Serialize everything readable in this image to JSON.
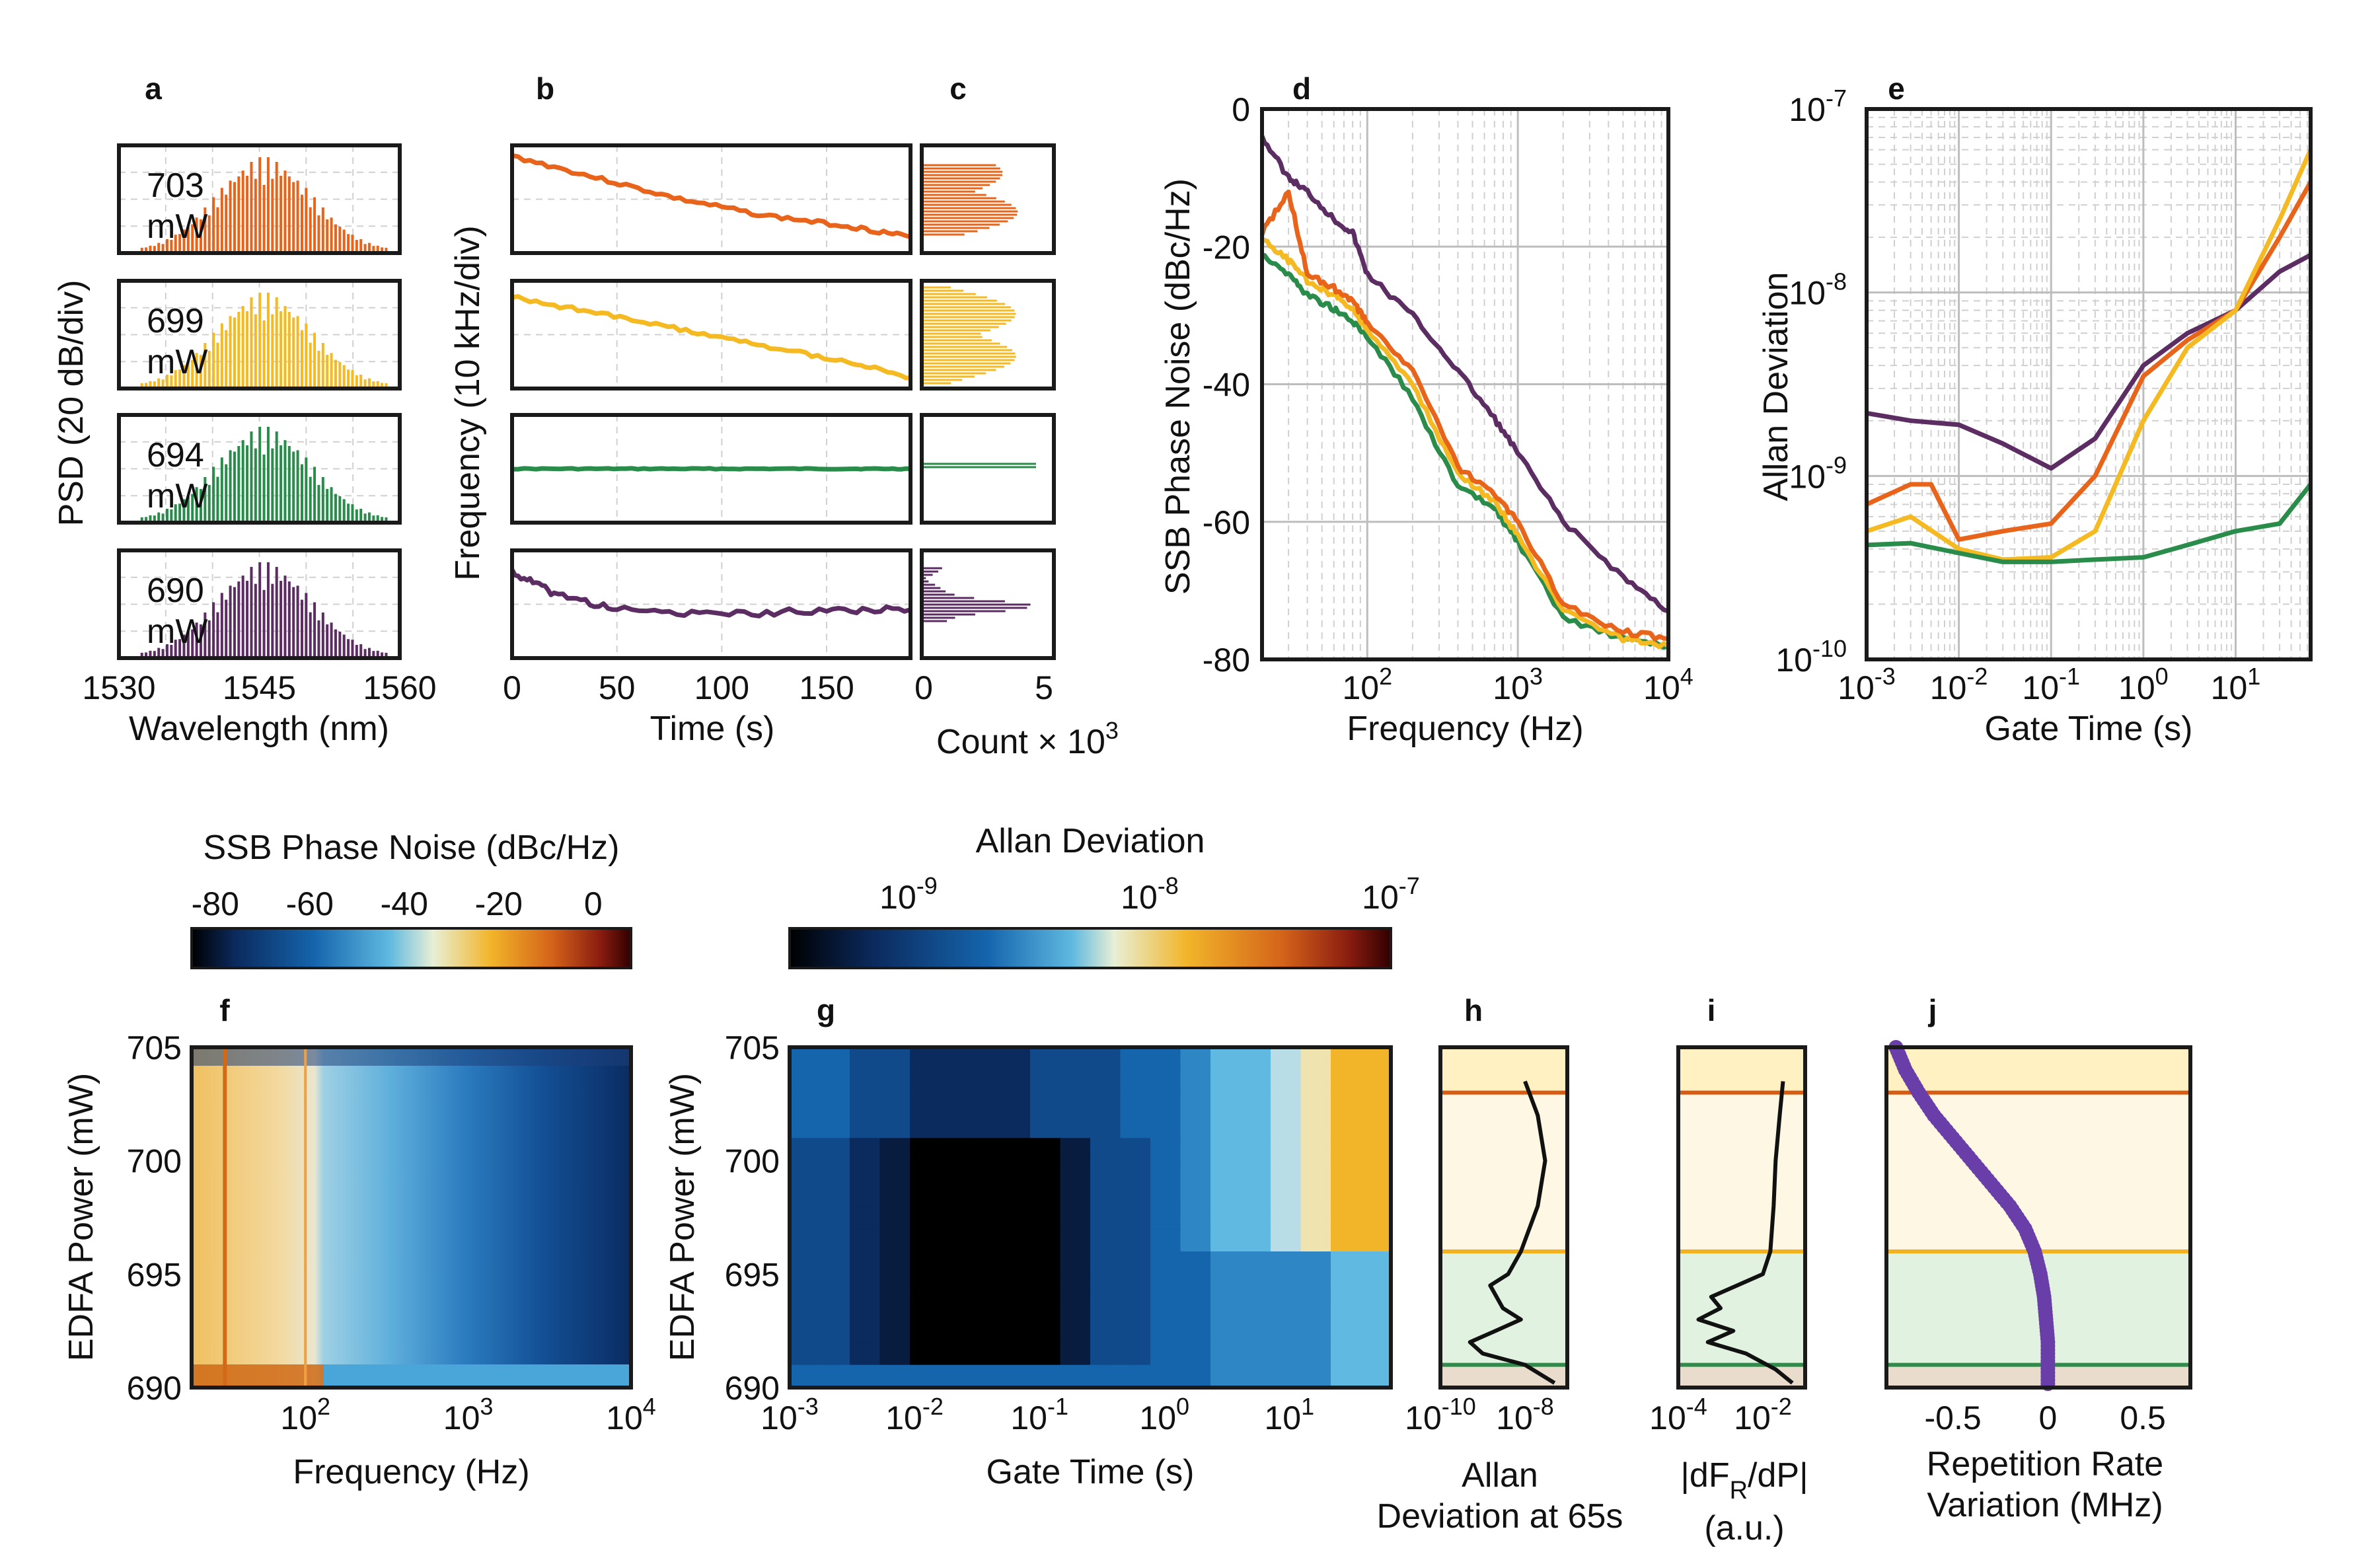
{
  "colors": {
    "p703": "#e8641b",
    "p699": "#f5b921",
    "p694": "#2a8c4a",
    "p690": "#5c2d62",
    "bandRed": "#d95a12",
    "bandYellow": "#f2b21e",
    "bandGreen": "#2e8b4a",
    "scatter": "#6a3ea8"
  },
  "panel_labels": [
    "a",
    "b",
    "c",
    "d",
    "e",
    "f",
    "g",
    "h",
    "i",
    "j"
  ],
  "chart_data": [
    {
      "id": "a",
      "type": "bar",
      "title": "",
      "xlabel": "Wavelength (nm)",
      "ylabel": "PSD (20 dB/div)",
      "xlim": [
        1530,
        1560
      ],
      "xticks": [
        "1530",
        "1545",
        "1560"
      ],
      "series": [
        {
          "name": "703",
          "unit": "mW",
          "center": 1545.5,
          "comb_spacing_nm": 0.5,
          "width_nm": 6
        },
        {
          "name": "699",
          "unit": "mW",
          "center": 1545.5,
          "comb_spacing_nm": 0.5,
          "width_nm": 6
        },
        {
          "name": "694",
          "unit": "mW",
          "center": 1545.5,
          "comb_spacing_nm": 0.5,
          "width_nm": 6
        },
        {
          "name": "690",
          "unit": "mW",
          "center": 1545.5,
          "comb_spacing_nm": 0.5,
          "width_nm": 6
        }
      ]
    },
    {
      "id": "b",
      "type": "line",
      "xlabel": "Time (s)",
      "ylabel": "Frequency (10 kHz/div)",
      "xlim": [
        0,
        190
      ],
      "xticks": [
        "0",
        "50",
        "100",
        "150"
      ],
      "series": [
        {
          "name": "703 mW",
          "x": [
            0,
            40,
            80,
            120,
            160,
            190
          ],
          "y": [
            0.9,
            0.7,
            0.5,
            0.35,
            0.25,
            0.15
          ]
        },
        {
          "name": "699 mW",
          "x": [
            0,
            40,
            80,
            120,
            160,
            190
          ],
          "y": [
            0.85,
            0.7,
            0.55,
            0.4,
            0.25,
            0.1
          ]
        },
        {
          "name": "694 mW",
          "x": [
            0,
            40,
            80,
            120,
            160,
            190
          ],
          "y": [
            0.5,
            0.5,
            0.5,
            0.5,
            0.5,
            0.5
          ]
        },
        {
          "name": "690 mW",
          "x": [
            0,
            20,
            50,
            100,
            150,
            190
          ],
          "y": [
            0.8,
            0.6,
            0.45,
            0.4,
            0.45,
            0.45
          ]
        }
      ]
    },
    {
      "id": "c",
      "type": "bar",
      "xlabel": "Count × 10",
      "xlabel_exp": "3",
      "xlim": [
        0,
        5
      ],
      "xticks": [
        "0",
        "5"
      ]
    },
    {
      "id": "d",
      "type": "line",
      "xlabel": "Frequency (Hz)",
      "ylabel": "SSB Phase Noise (dBc/Hz)",
      "xscale": "log",
      "xlim": [
        20,
        10000
      ],
      "ylim": [
        -80,
        0
      ],
      "yticks": [
        "0",
        "-20",
        "-40",
        "-60",
        "-80"
      ],
      "xticks": [
        {
          "base": "10",
          "exp": "2",
          "v": 100
        },
        {
          "base": "10",
          "exp": "3",
          "v": 1000
        },
        {
          "base": "10",
          "exp": "4",
          "v": 10000
        }
      ],
      "series": [
        {
          "name": "690 mW",
          "x": [
            20,
            30,
            40,
            60,
            80,
            100,
            200,
            400,
            700,
            1000,
            2000,
            5000,
            10000
          ],
          "y": [
            -4,
            -10,
            -12,
            -16,
            -18,
            -24,
            -30,
            -38,
            -45,
            -50,
            -60,
            -68,
            -73
          ]
        },
        {
          "name": "703 mW",
          "x": [
            20,
            30,
            40,
            60,
            80,
            100,
            200,
            400,
            700,
            1000,
            2000,
            5000,
            10000
          ],
          "y": [
            -18,
            -12,
            -24,
            -26,
            -28,
            -31,
            -38,
            -52,
            -56,
            -60,
            -72,
            -76,
            -77
          ]
        },
        {
          "name": "699 mW",
          "x": [
            20,
            30,
            40,
            60,
            80,
            100,
            200,
            400,
            700,
            1000,
            2000,
            5000,
            10000
          ],
          "y": [
            -19,
            -22,
            -25,
            -27,
            -29,
            -32,
            -40,
            -53,
            -57,
            -62,
            -73,
            -77,
            -78
          ]
        },
        {
          "name": "694 mW",
          "x": [
            20,
            30,
            40,
            60,
            80,
            100,
            200,
            400,
            700,
            1000,
            2000,
            5000,
            10000
          ],
          "y": [
            -21,
            -24,
            -27,
            -29,
            -31,
            -33,
            -42,
            -55,
            -58,
            -63,
            -74,
            -77,
            -78
          ]
        }
      ]
    },
    {
      "id": "e",
      "type": "line",
      "xlabel": "Gate Time (s)",
      "ylabel": "Allan Deviation",
      "xscale": "log",
      "yscale": "log",
      "xlim": [
        0.001,
        65
      ],
      "ylim": [
        1e-10,
        1e-07
      ],
      "yticks": [
        {
          "base": "10",
          "exp": "-7",
          "v": 1e-07
        },
        {
          "base": "10",
          "exp": "-8",
          "v": 1e-08
        },
        {
          "base": "10",
          "exp": "-9",
          "v": 1e-09
        },
        {
          "base": "10",
          "exp": "-10",
          "v": 1e-10
        }
      ],
      "xticks": [
        {
          "base": "10",
          "exp": "-3",
          "v": 0.001
        },
        {
          "base": "10",
          "exp": "-2",
          "v": 0.01
        },
        {
          "base": "10",
          "exp": "-1",
          "v": 0.1
        },
        {
          "base": "10",
          "exp": "0",
          "v": 1
        },
        {
          "base": "10",
          "exp": "1",
          "v": 10
        }
      ],
      "series": [
        {
          "name": "690 mW",
          "x": [
            0.001,
            0.003,
            0.01,
            0.03,
            0.1,
            0.3,
            1,
            3,
            10,
            30,
            65
          ],
          "y": [
            2.2e-09,
            2e-09,
            1.9e-09,
            1.5e-09,
            1.1e-09,
            1.6e-09,
            4e-09,
            6e-09,
            8e-09,
            1.3e-08,
            1.6e-08
          ]
        },
        {
          "name": "703 mW",
          "x": [
            0.001,
            0.003,
            0.005,
            0.01,
            0.03,
            0.1,
            0.3,
            1,
            3,
            10,
            30,
            65
          ],
          "y": [
            7e-10,
            9e-10,
            9e-10,
            4.5e-10,
            5e-10,
            5.5e-10,
            1e-09,
            3.5e-09,
            5.5e-09,
            8e-09,
            2e-08,
            4e-08
          ]
        },
        {
          "name": "699 mW",
          "x": [
            0.001,
            0.003,
            0.01,
            0.03,
            0.1,
            0.3,
            1,
            3,
            10,
            30,
            65
          ],
          "y": [
            5e-10,
            6e-10,
            4e-10,
            3.5e-10,
            3.6e-10,
            5e-10,
            2e-09,
            5e-09,
            8e-09,
            2.5e-08,
            6e-08
          ]
        },
        {
          "name": "694 mW",
          "x": [
            0.001,
            0.003,
            0.01,
            0.03,
            0.1,
            0.3,
            1,
            3,
            10,
            30,
            65
          ],
          "y": [
            4.2e-10,
            4.3e-10,
            3.8e-10,
            3.4e-10,
            3.4e-10,
            3.5e-10,
            3.6e-10,
            4.2e-10,
            5e-10,
            5.5e-10,
            9e-10
          ]
        }
      ]
    },
    {
      "id": "f",
      "type": "heatmap",
      "title": "SSB Phase Noise (dBc/Hz)",
      "colorbar_ticks": [
        "-80",
        "-60",
        "-40",
        "-20",
        "0"
      ],
      "colorbar_range": [
        -85,
        8
      ],
      "xlabel": "Frequency (Hz)",
      "ylabel": "EDFA Power (mW)",
      "xscale": "log",
      "xlim": [
        20,
        10000
      ],
      "ylim": [
        690,
        705
      ],
      "xticks": [
        {
          "base": "10",
          "exp": "2",
          "v": 100
        },
        {
          "base": "10",
          "exp": "3",
          "v": 1000
        },
        {
          "base": "10",
          "exp": "4",
          "v": 10000
        }
      ],
      "yticks": [
        "705",
        "700",
        "695",
        "690"
      ]
    },
    {
      "id": "g",
      "type": "heatmap",
      "title": "Allan Deviation",
      "colorbar_ticks": [
        {
          "base": "10",
          "exp": "-9"
        },
        {
          "base": "10",
          "exp": "-8"
        },
        {
          "base": "10",
          "exp": "-7"
        }
      ],
      "xlabel": "Gate Time (s)",
      "ylabel": "EDFA Power (mW)",
      "xscale": "log",
      "xlim": [
        0.001,
        65
      ],
      "ylim": [
        690,
        705
      ],
      "xticks": [
        {
          "base": "10",
          "exp": "-3",
          "v": 0.001
        },
        {
          "base": "10",
          "exp": "-2",
          "v": 0.01
        },
        {
          "base": "10",
          "exp": "-1",
          "v": 0.1
        },
        {
          "base": "10",
          "exp": "0",
          "v": 1
        },
        {
          "base": "10",
          "exp": "1",
          "v": 10
        }
      ],
      "yticks": [
        "705",
        "700",
        "695",
        "690"
      ]
    },
    {
      "id": "h",
      "type": "line",
      "xlabel_lines": [
        "Allan",
        "Deviation at 65s"
      ],
      "xscale": "log",
      "xlim": [
        1e-10,
        1e-07
      ],
      "ylim": [
        690,
        705
      ],
      "xticks": [
        {
          "base": "10",
          "exp": "-10",
          "v": 1e-10
        },
        {
          "base": "10",
          "exp": "-8",
          "v": 1e-08
        }
      ],
      "bands_mW": [
        690,
        691,
        696,
        703,
        705
      ],
      "x": [
        1e-08,
        2e-08,
        3e-08,
        2e-08,
        8e-09,
        4e-09,
        1.5e-09,
        3e-09,
        8e-09,
        2e-09,
        5e-10,
        1e-09,
        1e-08,
        5e-08
      ],
      "y": [
        703.5,
        702,
        700,
        698,
        696,
        695,
        694.5,
        693.5,
        693,
        692.5,
        692,
        691.5,
        691,
        690.2
      ]
    },
    {
      "id": "i",
      "type": "line",
      "xlabel_lines": [
        "|dF",
        "R",
        "/dP|",
        "(a.u.)"
      ],
      "xscale": "log",
      "xlim": [
        0.0001,
        0.1
      ],
      "ylim": [
        690,
        705
      ],
      "xticks": [
        {
          "base": "10",
          "exp": "-4",
          "v": 0.0001
        },
        {
          "base": "10",
          "exp": "-2",
          "v": 0.01
        }
      ],
      "bands_mW": [
        690,
        691,
        696,
        703,
        705
      ],
      "x": [
        0.03,
        0.025,
        0.02,
        0.018,
        0.015,
        0.01,
        0.0006,
        0.001,
        0.0003,
        0.002,
        0.0005,
        0.004,
        0.02,
        0.05
      ],
      "y": [
        703.5,
        702,
        700,
        698,
        696,
        695,
        694,
        693.5,
        693,
        692.5,
        692,
        691.5,
        690.8,
        690.2
      ]
    },
    {
      "id": "j",
      "type": "scatter",
      "xlabel_lines": [
        "Repetition Rate",
        "Variation (MHz)"
      ],
      "xlim": [
        -0.85,
        0.75
      ],
      "ylim": [
        690,
        705
      ],
      "xticks": [
        "-0.5",
        "0",
        "0.5"
      ],
      "xtick_values": [
        -0.5,
        0,
        0.5
      ],
      "bands_mW": [
        690,
        691,
        696,
        703,
        705
      ],
      "x": [
        -0.8,
        -0.75,
        -0.68,
        -0.6,
        -0.5,
        -0.4,
        -0.3,
        -0.2,
        -0.12,
        -0.07,
        -0.04,
        -0.02,
        -0.01,
        0.0,
        0.0,
        0.0
      ],
      "y": [
        705,
        704,
        703,
        702,
        701,
        700,
        699,
        698,
        697,
        696,
        695,
        694,
        693,
        692,
        691,
        690
      ]
    }
  ]
}
